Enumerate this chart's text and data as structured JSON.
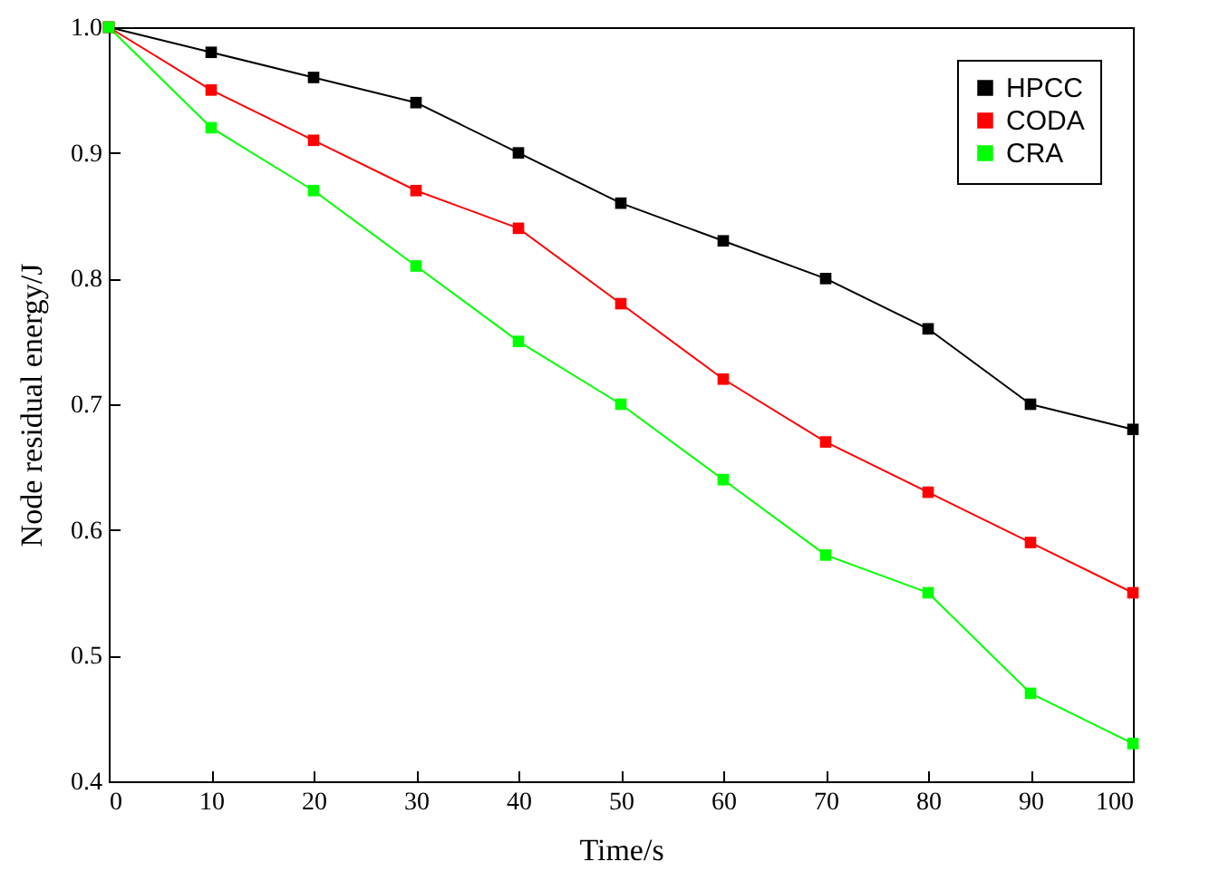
{
  "chart_data": {
    "type": "line",
    "xlabel": "Time/s",
    "ylabel": "Node residual energy/J",
    "x": [
      0,
      10,
      20,
      30,
      40,
      50,
      60,
      70,
      80,
      90,
      100
    ],
    "series": [
      {
        "name": "HPCC",
        "color": "#000000",
        "values": [
          1.0,
          0.98,
          0.96,
          0.94,
          0.9,
          0.86,
          0.83,
          0.8,
          0.76,
          0.7,
          0.68
        ]
      },
      {
        "name": "CODA",
        "color": "#ff0000",
        "values": [
          1.0,
          0.95,
          0.91,
          0.87,
          0.84,
          0.78,
          0.72,
          0.67,
          0.63,
          0.59,
          0.55
        ]
      },
      {
        "name": "CRA",
        "color": "#00ff00",
        "values": [
          1.0,
          0.92,
          0.87,
          0.81,
          0.75,
          0.7,
          0.64,
          0.58,
          0.55,
          0.47,
          0.43
        ]
      }
    ],
    "xlim": [
      0,
      100
    ],
    "xticks": [
      0,
      10,
      20,
      30,
      40,
      50,
      60,
      70,
      80,
      90,
      100
    ],
    "ylim": [
      0.4,
      1.0
    ],
    "yticks": [
      0.4,
      0.5,
      0.6,
      0.7,
      0.8,
      0.9,
      {
        "value": 1.0,
        "label": "1.0"
      }
    ],
    "legend": "top right",
    "marker": "square",
    "line_style": "solid"
  }
}
